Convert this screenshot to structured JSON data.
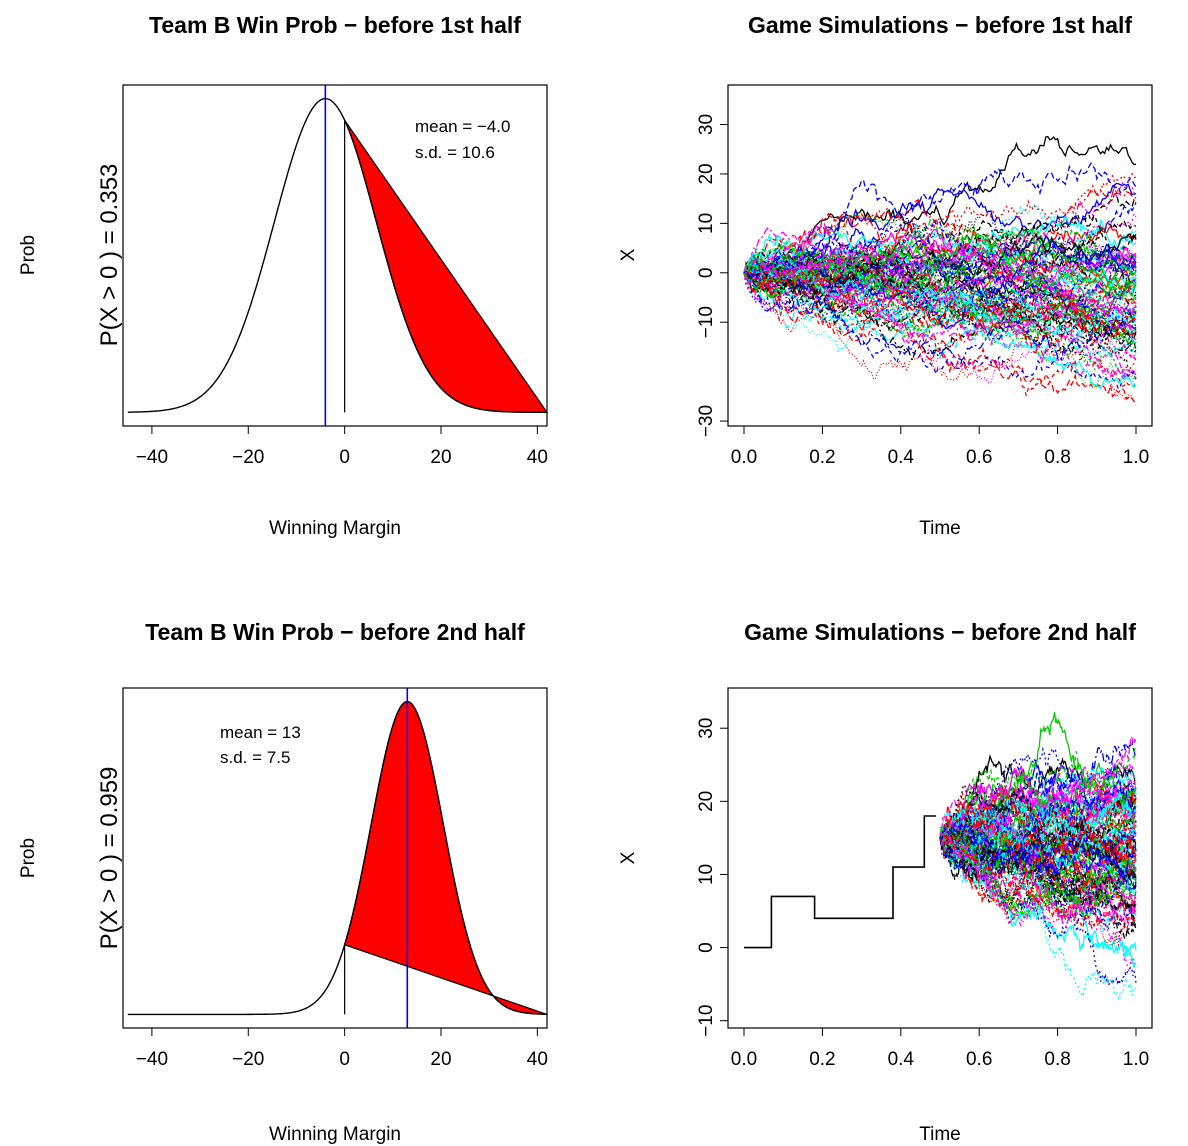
{
  "chart_data": [
    {
      "type": "line",
      "title": "Team B Win Prob − before 1st half",
      "xlabel": "Winning Margin",
      "ylabel": "Prob",
      "y_annotation": "P(X > 0 ) = 0.353",
      "stats_mean": "mean = −4.0",
      "stats_sd": "s.d. = 10.6",
      "mean": -4.0,
      "sd": 10.6,
      "xlim": [
        -46,
        42
      ],
      "xticks": [
        -40,
        -20,
        0,
        20,
        40
      ],
      "xtick_labels": [
        "−40",
        "−20",
        "0",
        "20",
        "40"
      ],
      "shaded_region": "X > 0",
      "shade_color": "#ff0000",
      "mean_line_color": "#0000ff"
    },
    {
      "type": "line",
      "title": "Game Simulations − before 1st half",
      "xlabel": "Time",
      "ylabel": "X",
      "xlim": [
        0,
        1
      ],
      "ylim": [
        -31,
        38
      ],
      "xticks": [
        0,
        0.2,
        0.4,
        0.6,
        0.8,
        1.0
      ],
      "xtick_labels": [
        "0.0",
        "0.2",
        "0.4",
        "0.6",
        "0.8",
        "1.0"
      ],
      "yticks": [
        -30,
        -10,
        0,
        10,
        20,
        30
      ],
      "ytick_labels": [
        "−30",
        "−10",
        "0",
        "10",
        "20",
        "30"
      ],
      "simulation_start_time": 0,
      "simulation_start_value": 0,
      "simulation_count": 100,
      "sd_at_end": 10.6,
      "drift": -4.0,
      "series_colors": [
        "#000000",
        "#ff0000",
        "#00cd00",
        "#0000ff",
        "#00ffff",
        "#ff00ff"
      ]
    },
    {
      "type": "line",
      "title": "Team B Win Prob − before 2nd half",
      "xlabel": "Winning Margin",
      "ylabel": "Prob",
      "y_annotation": "P(X > 0 ) = 0.959",
      "stats_mean": "mean = 13",
      "stats_sd": "s.d. = 7.5",
      "mean": 13,
      "sd": 7.5,
      "xlim": [
        -46,
        42
      ],
      "xticks": [
        -40,
        -20,
        0,
        20,
        40
      ],
      "xtick_labels": [
        "−40",
        "−20",
        "0",
        "20",
        "40"
      ],
      "shaded_region": "X > 0",
      "shade_color": "#ff0000",
      "mean_line_color": "#0000ff"
    },
    {
      "type": "line",
      "title": "Game Simulations − before 2nd half",
      "xlabel": "Time",
      "ylabel": "X",
      "xlim": [
        0,
        1
      ],
      "ylim": [
        -11,
        35.5
      ],
      "xticks": [
        0,
        0.2,
        0.4,
        0.6,
        0.8,
        1.0
      ],
      "xtick_labels": [
        "0.0",
        "0.2",
        "0.4",
        "0.6",
        "0.8",
        "1.0"
      ],
      "yticks": [
        -10,
        0,
        10,
        20,
        30
      ],
      "ytick_labels": [
        "−10",
        "0",
        "10",
        "20",
        "30"
      ],
      "observed_path": {
        "t": [
          0,
          0.07,
          0.07,
          0.18,
          0.18,
          0.38,
          0.38,
          0.46,
          0.46,
          0.49
        ],
        "x": [
          0,
          0,
          7,
          7,
          4,
          4,
          11,
          11,
          18,
          18
        ]
      },
      "simulation_start_time": 0.5,
      "simulation_start_value": 15,
      "simulation_count": 100,
      "sd_at_end": 7.5,
      "drift": -2.0,
      "series_colors": [
        "#000000",
        "#ff0000",
        "#00cd00",
        "#0000ff",
        "#00ffff",
        "#ff00ff"
      ]
    }
  ]
}
